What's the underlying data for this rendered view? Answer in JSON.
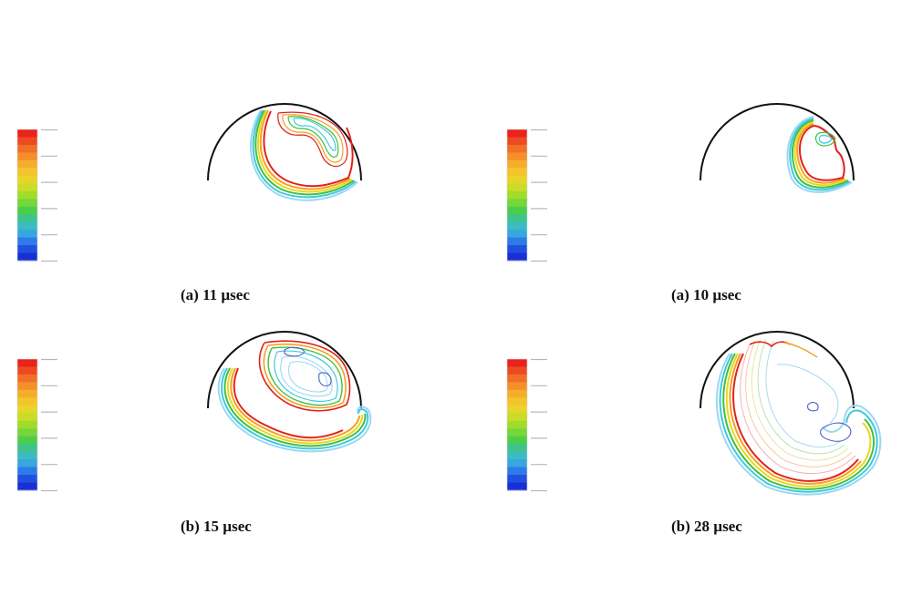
{
  "figure": {
    "panels": [
      {
        "id": "p1",
        "caption": "(a) 11 µsec"
      },
      {
        "id": "p2",
        "caption": "(a) 10 µsec"
      },
      {
        "id": "p3",
        "caption": "(b) 15 µsec"
      },
      {
        "id": "p4",
        "caption": "(b) 28 µsec"
      }
    ],
    "legend_colors": [
      "#e8241c",
      "#ee4a22",
      "#f07028",
      "#f3902a",
      "#f6ad2c",
      "#f3c52c",
      "#e8d42a",
      "#c8dc28",
      "#a2dc2a",
      "#76d63a",
      "#4cce4c",
      "#3ec48a",
      "#3cbcc0",
      "#38a6e0",
      "#2f7ae6",
      "#2050e0",
      "#1a30d4"
    ],
    "contour_colors": {
      "red": "#e3201a",
      "orange": "#f5a020",
      "yellow": "#e8d820",
      "green": "#40c040",
      "cyan": "#40c8e0",
      "light_cyan": "#9ad8f0",
      "blue": "#4a62c8",
      "boundary": "#111111"
    }
  }
}
